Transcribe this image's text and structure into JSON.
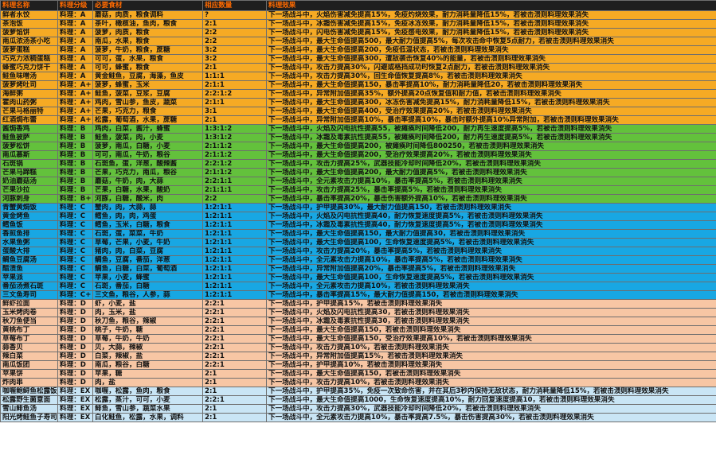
{
  "columns": [
    "料理名称",
    "料理分级",
    "必要食材",
    "相应数量",
    "料理效果"
  ],
  "group_colors": {
    "A": "#f6aa24",
    "B": "#63c13c",
    "C": "#18a7e3",
    "D": "#f7c6a4",
    "EX": "#c9e5f5"
  },
  "rows": [
    {
      "g": "A",
      "name": "鲜者水饺",
      "grade": "料理：A",
      "ing": "蘑菇，肉质，粮食调料",
      "qty": "?",
      "eff": "下一场战斗中，火焰伤害减免提高15%，免疫灼烧效果，耐力消耗量降低15%，若被击溃则料理效果消失"
    },
    {
      "g": "A",
      "name": "茶泡饭",
      "grade": "料理：A",
      "ing": "茶叶，橄榄油，鱼肉，粮食",
      "qty": "2:1",
      "eff": "下一场战斗中，冰霜伤害减免提高15%，免疫冰冻效果，耐力消耗量降低15%，若被击溃则料理效果消失"
    },
    {
      "g": "A",
      "name": "菠萝馅饼",
      "grade": "料理：A",
      "ing": "菠萝，肉质，粮食",
      "qty": "2:2",
      "eff": "下一场战斗中，闪电伤害减免提高15%，免疫感电效果，耐力消耗量降低15%，若被击溃则料理效果消失"
    },
    {
      "g": "A",
      "name": "南瓜浓汤茶小吃",
      "grade": "料理：A",
      "ing": "南瓜，水果，粮食",
      "qty": "2:2",
      "eff": "下一场战斗中，最大生命值提高500，最大耐力值提高5%，每次攻击命中恢复5点耐力，若被击溃则料理效果消失"
    },
    {
      "g": "A",
      "name": "菠萝蛋糕",
      "grade": "料理：A",
      "ing": "菠萝，牛奶，粮食，蔗糖",
      "qty": "3:2",
      "eff": "下一场战斗中，最大生命值提高200，免疫低温状态，若被击溃则料理效果消失"
    },
    {
      "g": "A",
      "name": "巧克力浓稠蛋糕",
      "grade": "料理：A",
      "ing": "可可，蛋，水果，粮食",
      "qty": "3:2",
      "eff": "下一场战斗中，最大生命值提高300，遭敌袭击恢复40%的能量，若被击溃则料理效果消失"
    },
    {
      "g": "A",
      "name": "蜂蜜巧克力饼干",
      "grade": "料理：A",
      "ing": "可可，蜂蜜，粮食",
      "qty": "2:1",
      "eff": "下一场战斗中，攻击力提高30%，闪避或格挡成功时恢复2点耐力，若被击溃则料理效果消失"
    },
    {
      "g": "A",
      "name": "鲑鱼味噌汤",
      "grade": "料理：A",
      "ing": "黄金鲑鱼，豆腐，海藻，鱼皮",
      "qty": "1:1:1",
      "eff": "下一场战斗中，攻击力提高30%，回生命值恢复提高8%，若被击溃则料理效果消失"
    },
    {
      "g": "A",
      "name": "菠萝烤吐司",
      "grade": "料理：A+",
      "ing": "菠萝，蜂蜜，玉米",
      "qty": "2:1:1",
      "eff": "下一场战斗中，最大生命值提高150，暴击率提高10%，耐力消耗量降低20，若被击溃则料理效果消失"
    },
    {
      "g": "A",
      "name": "海鲜粥",
      "grade": "料理：A+",
      "ing": "鲑鱼，菠菜，豆浆，豆腐",
      "qty": "2:2:1:2",
      "eff": "下一场战斗中，异常附加值提高35%，额外提高20点恢复值和耐力值，若被击溃则料理效果消失"
    },
    {
      "g": "A",
      "name": "霍肉山药粥",
      "grade": "料理：A+",
      "ing": "鸡肉，雪山参，鱼皮，蔬菜",
      "qty": "2:1:1",
      "eff": "下一场战斗中，最大生命值提高300，冰冻伤害减免提高15%，耐力消耗量降低15%，若被击溃则料理效果消失"
    },
    {
      "g": "A",
      "name": "芒果马格丽特",
      "grade": "料理：A+",
      "ing": "芒果，巧克力，粮食",
      "qty": "3:1",
      "eff": "下一场战斗中，最大生命值提高400，受治疗效果提高20%，若被击溃则料理效果消失"
    },
    {
      "g": "A",
      "name": "红酒焗布蕾",
      "grade": "料理：A+",
      "ing": "松露，葡萄酒，水果，蔗糖",
      "qty": "2:1",
      "eff": "下一场战斗中，异常附加值提高10%，暴击率提高10%，暴击时额外提高10%异常附加，若被击溃则料理效果消失"
    },
    {
      "g": "B",
      "name": "酱焗香鸡",
      "grade": "料理：B",
      "ing": "鸡肉，白菜，酱汁，蜂蜜",
      "qty": "1:3:1:2",
      "eff": "下一场战斗中，火焰及闪电抗性提高55，被瘫痪时间降低200，耐力再生速度提高5%，若被击溃则料理效果消失"
    },
    {
      "g": "B",
      "name": "鲑鱼披萨",
      "grade": "料理：B",
      "ing": "鲑鱼，菠菜，肉，小麦",
      "qty": "1:3:1:2",
      "eff": "下一场战斗中，冰霜及毒素抗性提高55，被瘫痪时间降低200，耐力再生速度提高5%，若被击溃则料理效果消失"
    },
    {
      "g": "B",
      "name": "菠萝松饼",
      "grade": "料理：B",
      "ing": "菠萝，南瓜，白糖，小麦",
      "qty": "2:1:1:2",
      "eff": "下一场战斗中，最大生命值提高200，被瘫痪时间降低800250，若被击溃则料理效果消失"
    },
    {
      "g": "B",
      "name": "南瓜慕斯",
      "grade": "料理：B",
      "ing": "可可，南瓜，牛奶，粮谷",
      "qty": "2:1:1:2",
      "eff": "下一场战斗中，最大生命值提高200，受治疗效果提高20%，若被击溃则料理效果消失"
    },
    {
      "g": "B",
      "name": "石斑锅",
      "grade": "料理：B",
      "ing": "石斑鱼，蛋，洋葱，酸辣酱",
      "qty": "2:2:1:2",
      "eff": "下一场战斗中，攻击力提高25%，武器技能冷却时间降低20%，若被击溃则料理效果消失"
    },
    {
      "g": "B",
      "name": "芒果马蹄糕",
      "grade": "料理：B",
      "ing": "芒果，巧克力，南瓜，粮谷",
      "qty": "2:1:1:2",
      "eff": "下一场战斗中，最大生命值提高200，最大耐力值提高5%，若被击溃则料理效果消失"
    },
    {
      "g": "B",
      "name": "奶油蘑菇汤",
      "grade": "料理：B",
      "ing": "蘑菇，牛奶，肉，大蒜",
      "qty": "2:2:1:1",
      "eff": "下一场战斗中，全元素攻击力提高10%，暴击率提高5%，若被击溃则料理效果消失"
    },
    {
      "g": "B",
      "name": "芒果沙拉",
      "grade": "料理：B",
      "ing": "芒果，白糖，水果，酸奶",
      "qty": "2:1:1:1",
      "eff": "下一场战斗中，攻击力提高25%，暴击率提高5%，若被击溃则料理效果消失"
    },
    {
      "g": "B",
      "name": "河豚刺身",
      "grade": "料理：B+",
      "ing": "河豚，白糖，酸米，肉",
      "qty": "2:2",
      "eff": "下一场战斗中，暴击率提高20%，暴击伤害额外提高10%，若被击溃则料理效果消失"
    },
    {
      "g": "C",
      "name": "青蟹黄焗饭",
      "grade": "料理：C",
      "ing": "蟹肉，肉，大蒜，蒜",
      "qty": "1:2:1:1",
      "eff": "下一场战斗中，护甲提高30%，最大耐力值提高150，若被击溃则料理效果消失"
    },
    {
      "g": "C",
      "name": "黄金烤鱼",
      "grade": "料理：C",
      "ing": "鳕鱼，肉，肉，鸡蛋",
      "qty": "1:2:1:1",
      "eff": "下一场战斗中，火焰及闪电抗性提高40，耐力恢复速度提高5%，若被击溃则料理效果消失"
    },
    {
      "g": "C",
      "name": "鳕鱼饭",
      "grade": "料理：C",
      "ing": "鳕鱼，玉米，白糖，粮食",
      "qty": "1:2:1:1",
      "eff": "下一场战斗中，冰霜及毒素抗性提高40，耐力恢复速度提高5%，若被击溃则料理效果消失"
    },
    {
      "g": "C",
      "name": "香煎鱼排",
      "grade": "料理：C",
      "ing": "石斑，蛋，菜菜，牛奶",
      "qty": "1:2:1:1",
      "eff": "下一场战斗中，最大生命值提高150，最大耐力值提高30，若被击溃则料理效果消失"
    },
    {
      "g": "C",
      "name": "水果鱼粥",
      "grade": "料理：C",
      "ing": "草莓，芒果，小麦，牛奶",
      "qty": "1:2:1:1",
      "eff": "下一场战斗中，最大生命值提高100，生命恢复速度提高5%，若被击溃则料理效果消失"
    },
    {
      "g": "C",
      "name": "蛋酸大排",
      "grade": "料理：C",
      "ing": "猪肉，肉，白菜，豆腐",
      "qty": "1:2:1:1",
      "eff": "下一场战斗中，攻击力提高20%，暴击率提高5%，若被击溃则料理效果消失"
    },
    {
      "g": "C",
      "name": "鲷鱼豆腐汤",
      "grade": "料理：C",
      "ing": "鲷鱼，豆腐，番茄，洋葱",
      "qty": "1:2:1:1",
      "eff": "下一场战斗中，全元素攻击力提高10%，暴击率提高5%，若被击溃则料理效果消失"
    },
    {
      "g": "C",
      "name": "醋渍鱼",
      "grade": "料理：C",
      "ing": "鲷鱼，白糖，白菜，葡萄酒",
      "qty": "1:2:1:1",
      "eff": "下一场战斗中，异常附加值提高20%，暴击率提高5%，若被击溃则料理效果消失"
    },
    {
      "g": "C",
      "name": "苹果派",
      "grade": "料理：C",
      "ing": "苹果，小麦，蜂蜜",
      "qty": "1:2:1:1",
      "eff": "下一场战斗中，最大生命值提高100，生命恢复速度提高5%，若被击溃则料理效果消失"
    },
    {
      "g": "C",
      "name": "番茄汤煮石斑",
      "grade": "料理：C",
      "ing": "石斑，番茄，白糖",
      "qty": "1:2:1:1",
      "eff": "下一场战斗中，全元素攻击力提高10%，若被击溃则料理效果消失"
    },
    {
      "g": "C",
      "name": "三文鱼寿司",
      "grade": "料理：C+",
      "ing": "三文鱼，粮谷，人参，蒜",
      "qty": "1:2:1:1",
      "eff": "下一场战斗中，暴击率提高15%，最大耐力值提高150，若被击溃则料理效果消失"
    },
    {
      "g": "D",
      "name": "鲜虾拉面",
      "grade": "料理：D",
      "ing": "虾，小麦，盐",
      "qty": "2:2:1",
      "eff": "下一场战斗中，护甲提高15%，若被击溃则料理效果消失"
    },
    {
      "g": "D",
      "name": "玉米烤肉卷",
      "grade": "料理：D",
      "ing": "肉，玉米，盐",
      "qty": "2:2:1",
      "eff": "下一场战斗中，火焰及闪电抗性提高30，若被击溃则料理效果消失"
    },
    {
      "g": "D",
      "name": "秋刀鱼便当",
      "grade": "料理：D",
      "ing": "秋刀鱼，粮谷，辣椒",
      "qty": "2:2:1",
      "eff": "下一场战斗中，冰霜及毒素抗性提高30，若被击溃则料理效果消失"
    },
    {
      "g": "D",
      "name": "黄桃布丁",
      "grade": "料理：D",
      "ing": "桃子，牛奶，糖",
      "qty": "2:2:1",
      "eff": "下一场战斗中，最大生命值提高150，若被击溃则料理效果消失"
    },
    {
      "g": "D",
      "name": "草莓布丁",
      "grade": "料理：D",
      "ing": "草莓，牛奶，牛奶",
      "qty": "2:2:1",
      "eff": "下一场战斗中，最大生命值提高150，受治疗效果提高10%，若被击溃则料理效果消失"
    },
    {
      "g": "D",
      "name": "蒜香贝",
      "grade": "料理：D",
      "ing": "贝，大蒜，辣椒",
      "qty": "2:2:1",
      "eff": "下一场战斗中，攻击力提高10%，若被击溃则料理效果消失"
    },
    {
      "g": "D",
      "name": "辣白菜",
      "grade": "料理：D",
      "ing": "白菜，辣椒，盐",
      "qty": "2:2:1",
      "eff": "下一场战斗中，异常附加值提高15%，若被击溃则料理效果消失"
    },
    {
      "g": "D",
      "name": "南瓜饭团",
      "grade": "料理：D",
      "ing": "南瓜，粮谷，白糖",
      "qty": "2:2:1",
      "eff": "下一场战斗中，护甲提高10%，若被击溃则料理效果消失"
    },
    {
      "g": "D",
      "name": "苹果饼",
      "grade": "料理：D",
      "ing": "苹果，糖",
      "qty": "2:1",
      "eff": "下一场战斗中，最大生命值提高150，若被击溃则料理效果消失"
    },
    {
      "g": "D",
      "name": "炸肉串",
      "grade": "料理：D",
      "ing": "肉，盐",
      "qty": "2:1",
      "eff": "下一场战斗中，攻击力提高10%，若被击溃则料理效果消失"
    },
    {
      "g": "EX",
      "name": "咖喱鲍鲟鱼松露饭",
      "grade": "料理：EX",
      "ing": "咖喱，松露，鱼肉，粮食",
      "qty": "2:1",
      "eff": "下一场战斗中，护甲提高35%，免疫一次致命伤害，并在其后3秒内保持无敌状态，耐力消耗量降低15%，若被击溃则料理效果消失"
    },
    {
      "g": "EX",
      "name": "松露野生菌意面",
      "grade": "料理：EX",
      "ing": "松露，蒸汁，可可，小麦",
      "qty": "2:2:1",
      "eff": "下一场战斗中，最大生命值提高1000，生命恢复速度提高10%，耐力回复速度提高10，若被击溃则料理效果消失"
    },
    {
      "g": "EX",
      "name": "雪山鲱鱼汤",
      "grade": "料理：EX",
      "ing": "鲱鱼，雪山参，蔬菜水果",
      "qty": "2:1",
      "eff": "下一场战斗中，攻击力提高30%，武器技能冷却时间降低20%，若被击溃则料理效果消失"
    },
    {
      "g": "EX",
      "name": "阳光烤鲑鱼子寿司",
      "grade": "料理：EX",
      "ing": "白化鲑鱼，松露，水果，调料",
      "qty": "2:1",
      "eff": "下一场战斗中，全元素攻击力提高10%，暴击率提高7.5%，暴击伤害提高30%，若被击溃则料理效果消失"
    }
  ]
}
